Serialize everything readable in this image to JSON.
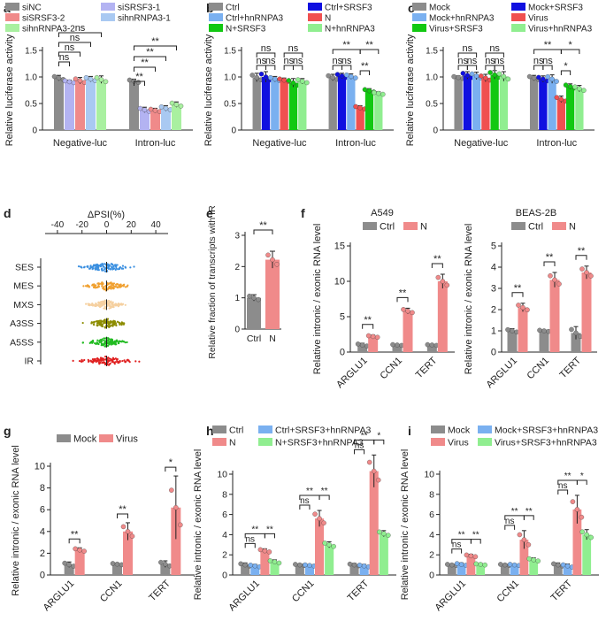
{
  "chart_data": [
    {
      "panel": "a",
      "type": "bar",
      "ylabel": "Relative luciferase activity",
      "ylim": [
        0,
        1.5
      ],
      "yticks": [
        0,
        0.5,
        1.0,
        1.5
      ],
      "yticklabels": [
        "0",
        "0.5",
        "1.0",
        "1.5"
      ],
      "groups": [
        "Negative-luc",
        "Intron-luc"
      ],
      "series": [
        {
          "name": "siNC",
          "color": "#8c8c8c",
          "values": [
            0.98,
            0.92
          ],
          "errors": [
            0.05,
            0.04
          ]
        },
        {
          "name": "siSRSF3-1",
          "color": "#b3b3f2",
          "values": [
            0.91,
            0.38
          ],
          "errors": [
            0.03,
            0.05
          ]
        },
        {
          "name": "siSRSF3-2",
          "color": "#f08a8a",
          "values": [
            0.93,
            0.37
          ],
          "errors": [
            0.06,
            0.04
          ]
        },
        {
          "name": "sihnRNPA3-1",
          "color": "#a9c9f2",
          "values": [
            0.96,
            0.41
          ],
          "errors": [
            0.05,
            0.05
          ]
        },
        {
          "name": "sihnRNPA3-2",
          "color": "#a9f0a0",
          "values": [
            0.95,
            0.48
          ],
          "errors": [
            0.07,
            0.05
          ]
        }
      ],
      "legend": [
        [
          "siNC",
          "siSRSF3-1"
        ],
        [
          "siSRSF3-2",
          "sihnRNPA3-1"
        ],
        [
          "sihnRNPA3-2"
        ]
      ],
      "annotations": [
        "ns",
        "ns",
        "ns",
        "ns",
        "**",
        "**",
        "**",
        "**"
      ]
    },
    {
      "panel": "b",
      "type": "bar",
      "ylabel": "Relative luciferase activity",
      "ylim": [
        0,
        1.5
      ],
      "yticks": [
        0,
        0.5,
        1.0,
        1.5
      ],
      "yticklabels": [
        "0",
        "0.5",
        "1.0",
        "1.5"
      ],
      "groups": [
        "Negative-luc",
        "Intron-luc"
      ],
      "series": [
        {
          "name": "Ctrl",
          "color": "#8c8c8c",
          "values": [
            0.99,
            0.99
          ],
          "errors": [
            0.08,
            0.06
          ]
        },
        {
          "name": "Ctrl+SRSF3",
          "color": "#1010e0",
          "values": [
            1.0,
            1.02
          ],
          "errors": [
            0.1,
            0.05
          ]
        },
        {
          "name": "Ctrl+hnRNPA3",
          "color": "#7ab0f0",
          "values": [
            0.96,
            1.01
          ],
          "errors": [
            0.05,
            0.05
          ]
        },
        {
          "name": "N",
          "color": "#f05050",
          "values": [
            0.94,
            0.42
          ],
          "errors": [
            0.04,
            0.04
          ]
        },
        {
          "name": "N+SRSF3",
          "color": "#12c812",
          "values": [
            0.89,
            0.74
          ],
          "errors": [
            0.08,
            0.04
          ]
        },
        {
          "name": "N+hnRNPA3",
          "color": "#90ee90",
          "values": [
            0.92,
            0.69
          ],
          "errors": [
            0.05,
            0.03
          ]
        }
      ],
      "legend": [
        [
          "Ctrl",
          "Ctrl+SRSF3"
        ],
        [
          "Ctrl+hnRNPA3",
          "N"
        ],
        [
          "N+SRSF3",
          "N+hnRNPA3"
        ]
      ],
      "annotations": [
        "ns",
        "ns",
        "ns",
        "ns",
        "ns",
        "ns",
        "**",
        "**",
        "**",
        "**"
      ]
    },
    {
      "panel": "c",
      "type": "bar",
      "ylabel": "Relative luciferase activity",
      "ylim": [
        0,
        1.5
      ],
      "yticks": [
        0,
        0.5,
        1.0,
        1.5
      ],
      "yticklabels": [
        "0",
        "0.5",
        "1.0",
        "1.5"
      ],
      "groups": [
        "Negative-luc",
        "Intron-luc"
      ],
      "series": [
        {
          "name": "Mock",
          "color": "#8c8c8c",
          "values": [
            0.99,
            0.98
          ],
          "errors": [
            0.03,
            0.05
          ]
        },
        {
          "name": "Mock+SRSF3",
          "color": "#1010e0",
          "values": [
            1.03,
            0.96
          ],
          "errors": [
            0.07,
            0.06
          ]
        },
        {
          "name": "Mock+hnRNPA3",
          "color": "#7ab0f0",
          "values": [
            1.02,
            0.96
          ],
          "errors": [
            0.07,
            0.08
          ]
        },
        {
          "name": "Virus",
          "color": "#f05050",
          "values": [
            0.98,
            0.58
          ],
          "errors": [
            0.07,
            0.06
          ]
        },
        {
          "name": "Virus+SRSF3",
          "color": "#12c812",
          "values": [
            1.04,
            0.82
          ],
          "errors": [
            0.08,
            0.05
          ]
        },
        {
          "name": "Virus+hnRNPA3",
          "color": "#90ee90",
          "values": [
            1.01,
            0.78
          ],
          "errors": [
            0.09,
            0.06
          ]
        }
      ],
      "legend": [
        [
          "Mock",
          "Mock+SRSF3"
        ],
        [
          "Mock+hnRNPA3",
          "Virus"
        ],
        [
          "Virus+SRSF3",
          "Virus+hnRNPA3"
        ]
      ],
      "annotations": [
        "ns",
        "ns",
        "ns",
        "ns",
        "ns",
        "ns",
        "**",
        "*",
        "*"
      ]
    },
    {
      "panel": "d",
      "type": "scatter",
      "title": "ΔPSI(%)",
      "xlim": [
        -50,
        50
      ],
      "xticks": [
        -40,
        -20,
        0,
        20,
        40
      ],
      "xticklabels": [
        "-40",
        "-20",
        "0",
        "20",
        "40"
      ],
      "categories": [
        "SES",
        "MES",
        "MXS",
        "A3SS",
        "A5SS",
        "IR"
      ],
      "colors": [
        "#3a8fe0",
        "#f0a030",
        "#f5d0a0",
        "#8c8c00",
        "#22bb22",
        "#e02020"
      ]
    },
    {
      "panel": "e",
      "type": "bar",
      "ylabel": "Relative fraction of transcripts with IR",
      "ylim": [
        0,
        3
      ],
      "yticks": [
        0,
        1,
        2,
        3
      ],
      "yticklabels": [
        "0",
        "1",
        "2",
        "3"
      ],
      "categories": [
        "Ctrl",
        "N"
      ],
      "values": [
        1.0,
        2.22
      ],
      "errors": [
        0.1,
        0.27
      ],
      "colors": [
        "#8c8c8c",
        "#f08a8a"
      ],
      "annotations": [
        "**"
      ]
    },
    {
      "panel": "f",
      "type": "bar",
      "title": "A549",
      "ylabel": "Relative intronic / exonic RNA level",
      "ylim": [
        0,
        15
      ],
      "yticks": [
        0,
        5,
        10,
        15
      ],
      "yticklabels": [
        "0",
        "5",
        "10",
        "15"
      ],
      "groups": [
        "ARGLU1",
        "CCN1",
        "TERT"
      ],
      "series": [
        {
          "name": "Ctrl",
          "color": "#8c8c8c",
          "values": [
            1.0,
            1.0,
            1.0
          ],
          "errors": [
            0.25,
            0.1,
            0.1
          ]
        },
        {
          "name": "N",
          "color": "#f08a8a",
          "values": [
            2.2,
            5.8,
            10.0
          ],
          "errors": [
            0.2,
            0.4,
            1.0
          ]
        }
      ],
      "legend": [
        [
          "Ctrl",
          "N"
        ]
      ],
      "annotations": [
        "**",
        "**",
        "**"
      ]
    },
    {
      "panel": "f2",
      "type": "bar",
      "title": "BEAS-2B",
      "ylabel": "Relative intronic / exonic RNA level",
      "ylim": [
        0,
        5
      ],
      "yticks": [
        0,
        1,
        2,
        3,
        4,
        5
      ],
      "yticklabels": [
        "0",
        "1",
        "2",
        "3",
        "4",
        "5"
      ],
      "groups": [
        "ARGLU1",
        "CCN1",
        "TERT"
      ],
      "series": [
        {
          "name": "Ctrl",
          "color": "#8c8c8c",
          "values": [
            1.0,
            1.0,
            0.9
          ],
          "errors": [
            0.1,
            0.05,
            0.3
          ]
        },
        {
          "name": "N",
          "color": "#f08a8a",
          "values": [
            2.1,
            3.4,
            3.75
          ],
          "errors": [
            0.2,
            0.35,
            0.3
          ]
        }
      ],
      "legend": [
        [
          "Ctrl",
          "N"
        ]
      ],
      "annotations": [
        "**",
        "**",
        "**"
      ]
    },
    {
      "panel": "g",
      "type": "bar",
      "ylabel": "Relative intronic / exonic RNA level",
      "ylim": [
        0,
        10
      ],
      "yticks": [
        0,
        2,
        4,
        6,
        8,
        10
      ],
      "yticklabels": [
        "0",
        "2",
        "4",
        "6",
        "8",
        "10"
      ],
      "groups": [
        "ARGLU1",
        "CCN1",
        "TERT"
      ],
      "series": [
        {
          "name": "Mock",
          "color": "#8c8c8c",
          "values": [
            0.95,
            1.0,
            1.0
          ],
          "errors": [
            0.25,
            0.1,
            0.3
          ]
        },
        {
          "name": "Virus",
          "color": "#f08a8a",
          "values": [
            2.3,
            4.0,
            6.2
          ],
          "errors": [
            0.2,
            0.8,
            2.9
          ]
        }
      ],
      "legend": [
        [
          "Mock",
          "Virus"
        ]
      ],
      "annotations": [
        "**",
        "**",
        "*"
      ]
    },
    {
      "panel": "h",
      "type": "bar",
      "ylabel": "Relative intronic / exonic RNA level",
      "ylim": [
        0,
        10
      ],
      "yticks": [
        0,
        2,
        4,
        6,
        8,
        10
      ],
      "yticklabels": [
        "0",
        "2",
        "4",
        "6",
        "8",
        "10"
      ],
      "groups": [
        "ARGLU1",
        "CCN1",
        "TERT"
      ],
      "series": [
        {
          "name": "Ctrl",
          "color": "#8c8c8c",
          "values": [
            1.0,
            1.0,
            1.0
          ],
          "errors": [
            0.2,
            0.1,
            0.15
          ]
        },
        {
          "name": "Ctrl+SRSF3+hnRNPA3",
          "color": "#7ab0f0",
          "values": [
            0.9,
            0.95,
            0.9
          ],
          "errors": [
            0.15,
            0.1,
            0.15
          ]
        },
        {
          "name": "N",
          "color": "#f08a8a",
          "values": [
            2.4,
            5.6,
            10.3
          ],
          "errors": [
            0.2,
            0.8,
            1.6
          ]
        },
        {
          "name": "N+SRSF3+hnRNPA3",
          "color": "#90ee90",
          "values": [
            1.3,
            3.0,
            4.1
          ],
          "errors": [
            0.2,
            0.3,
            0.3
          ]
        }
      ],
      "legend": [
        [
          "Ctrl",
          "Ctrl+SRSF3+hnRNPA3"
        ],
        [
          "N",
          "N+SRSF3+hnRNPA3"
        ]
      ],
      "annotations": [
        "ns",
        "**",
        "**",
        "ns",
        "**",
        "**",
        "ns",
        "**",
        "*"
      ]
    },
    {
      "panel": "i",
      "type": "bar",
      "ylabel": "Relative intronic / exonic RNA level",
      "ylim": [
        0,
        10
      ],
      "yticks": [
        0,
        2,
        4,
        6,
        8,
        10
      ],
      "yticklabels": [
        "0",
        "2",
        "4",
        "6",
        "8",
        "10"
      ],
      "groups": [
        "ARGLU1",
        "CCN1",
        "TERT"
      ],
      "series": [
        {
          "name": "Mock",
          "color": "#8c8c8c",
          "values": [
            1.0,
            1.0,
            1.0
          ],
          "errors": [
            0.1,
            0.1,
            0.2
          ]
        },
        {
          "name": "Mock+SRSF3+hnRNPA3",
          "color": "#7ab0f0",
          "values": [
            1.05,
            1.0,
            0.9
          ],
          "errors": [
            0.15,
            0.1,
            0.2
          ]
        },
        {
          "name": "Virus",
          "color": "#f08a8a",
          "values": [
            1.9,
            3.5,
            6.5
          ],
          "errors": [
            0.15,
            0.9,
            1.4
          ]
        },
        {
          "name": "Virus+SRSF3+hnRNPA3",
          "color": "#90ee90",
          "values": [
            1.05,
            1.5,
            4.0
          ],
          "errors": [
            0.1,
            0.2,
            0.5
          ]
        }
      ],
      "legend": [
        [
          "Mock",
          "Mock+SRSF3+hnRNPA3"
        ],
        [
          "Virus",
          "Virus+SRSF3+hnRNPA3"
        ]
      ],
      "annotations": [
        "ns",
        "**",
        "**",
        "ns",
        "**",
        "**",
        "ns",
        "**",
        "*"
      ]
    }
  ]
}
